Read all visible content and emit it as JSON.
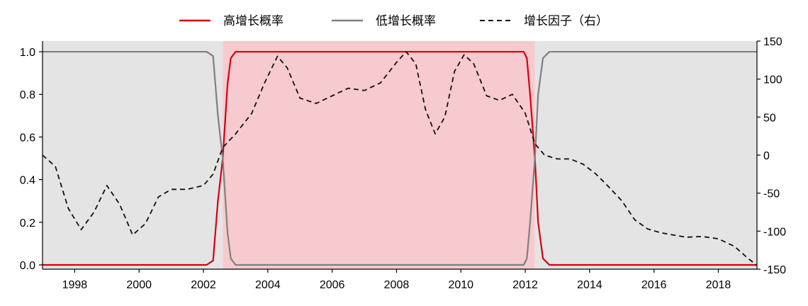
{
  "chart_data": {
    "type": "line",
    "x_range": [
      1997.0,
      2019.2
    ],
    "y_left_range": [
      -0.02,
      1.05
    ],
    "y_right_range": [
      -150,
      150
    ],
    "left_ticks": [
      "0.0",
      "0.2",
      "0.4",
      "0.6",
      "0.8",
      "1.0"
    ],
    "right_ticks": [
      "-150",
      "-100",
      "-50",
      "0",
      "50",
      "100",
      "150"
    ],
    "x_ticks": [
      "1998",
      "2000",
      "2002",
      "2004",
      "2006",
      "2008",
      "2010",
      "2012",
      "2014",
      "2016",
      "2018"
    ],
    "regimes": [
      {
        "name": "low",
        "start": 1997.0,
        "end": 2002.6,
        "color": "#e4e4e4"
      },
      {
        "name": "high",
        "start": 2002.6,
        "end": 2012.3,
        "color": "#f6cace"
      },
      {
        "name": "low",
        "start": 2012.3,
        "end": 2019.2,
        "color": "#e4e4e4"
      }
    ],
    "series": [
      {
        "name": "高增长概率",
        "axis": "left",
        "color": "#d7000f",
        "style": "solid",
        "points": [
          [
            1997.0,
            0.0
          ],
          [
            2002.1,
            0.0
          ],
          [
            2002.3,
            0.02
          ],
          [
            2002.45,
            0.3
          ],
          [
            2002.6,
            0.5
          ],
          [
            2002.75,
            0.85
          ],
          [
            2002.85,
            0.97
          ],
          [
            2003.0,
            1.0
          ],
          [
            2011.95,
            1.0
          ],
          [
            2012.05,
            0.97
          ],
          [
            2012.15,
            0.8
          ],
          [
            2012.3,
            0.5
          ],
          [
            2012.4,
            0.2
          ],
          [
            2012.55,
            0.03
          ],
          [
            2012.75,
            0.0
          ],
          [
            2019.2,
            0.0
          ]
        ]
      },
      {
        "name": "低增长概率",
        "axis": "left",
        "color": "#808080",
        "style": "solid",
        "points": [
          [
            1997.0,
            1.0
          ],
          [
            2002.1,
            1.0
          ],
          [
            2002.3,
            0.98
          ],
          [
            2002.45,
            0.7
          ],
          [
            2002.6,
            0.5
          ],
          [
            2002.75,
            0.15
          ],
          [
            2002.85,
            0.03
          ],
          [
            2003.0,
            0.0
          ],
          [
            2011.95,
            0.0
          ],
          [
            2012.05,
            0.03
          ],
          [
            2012.15,
            0.2
          ],
          [
            2012.3,
            0.5
          ],
          [
            2012.4,
            0.8
          ],
          [
            2012.55,
            0.97
          ],
          [
            2012.75,
            1.0
          ],
          [
            2019.2,
            1.0
          ]
        ]
      },
      {
        "name": "增长因子（右）",
        "axis": "right",
        "color": "#111111",
        "style": "dashed",
        "points": [
          [
            1997.0,
            0
          ],
          [
            1997.4,
            -15
          ],
          [
            1997.8,
            -70
          ],
          [
            1998.2,
            -98
          ],
          [
            1998.6,
            -75
          ],
          [
            1999.0,
            -40
          ],
          [
            1999.4,
            -65
          ],
          [
            1999.8,
            -105
          ],
          [
            2000.2,
            -90
          ],
          [
            2000.6,
            -55
          ],
          [
            2001.0,
            -45
          ],
          [
            2001.5,
            -45
          ],
          [
            2002.0,
            -40
          ],
          [
            2002.3,
            -25
          ],
          [
            2002.6,
            10
          ],
          [
            2003.0,
            28
          ],
          [
            2003.5,
            55
          ],
          [
            2003.9,
            95
          ],
          [
            2004.3,
            130
          ],
          [
            2004.6,
            115
          ],
          [
            2005.0,
            75
          ],
          [
            2005.5,
            68
          ],
          [
            2006.0,
            78
          ],
          [
            2006.5,
            88
          ],
          [
            2007.0,
            85
          ],
          [
            2007.5,
            95
          ],
          [
            2008.0,
            122
          ],
          [
            2008.3,
            136
          ],
          [
            2008.6,
            120
          ],
          [
            2008.9,
            60
          ],
          [
            2009.2,
            28
          ],
          [
            2009.5,
            50
          ],
          [
            2009.8,
            110
          ],
          [
            2010.1,
            132
          ],
          [
            2010.4,
            120
          ],
          [
            2010.8,
            78
          ],
          [
            2011.2,
            72
          ],
          [
            2011.6,
            80
          ],
          [
            2012.0,
            55
          ],
          [
            2012.3,
            15
          ],
          [
            2012.6,
            0
          ],
          [
            2013.0,
            -5
          ],
          [
            2013.4,
            -5
          ],
          [
            2013.8,
            -12
          ],
          [
            2014.2,
            -25
          ],
          [
            2014.6,
            -42
          ],
          [
            2015.0,
            -60
          ],
          [
            2015.4,
            -85
          ],
          [
            2015.8,
            -97
          ],
          [
            2016.2,
            -102
          ],
          [
            2016.6,
            -105
          ],
          [
            2017.0,
            -108
          ],
          [
            2017.5,
            -107
          ],
          [
            2018.0,
            -110
          ],
          [
            2018.5,
            -120
          ],
          [
            2018.9,
            -135
          ],
          [
            2019.2,
            -145
          ]
        ]
      }
    ],
    "legend": {
      "position": "top-center",
      "labels": [
        "高增长概率",
        "低增长概率",
        "增长因子（右）"
      ]
    }
  }
}
